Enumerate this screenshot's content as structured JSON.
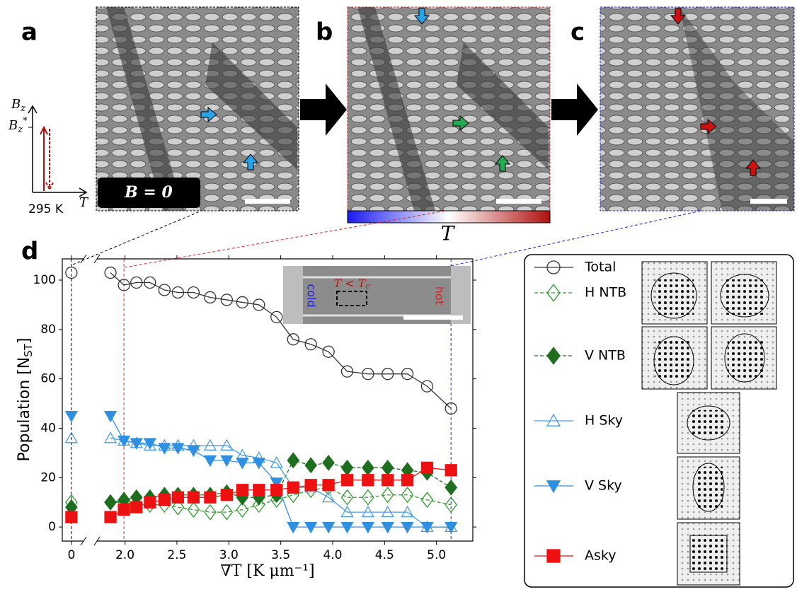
{
  "panel_labels": [
    "a",
    "b",
    "c",
    "d"
  ],
  "field_diagram": {
    "y_axis": "B",
    "y_axis_sub": "z",
    "y_mark": "B",
    "y_mark_sub": "z",
    "y_mark_sup": "*",
    "x_axis": "T",
    "x_mark": "295 K"
  },
  "field_badge": "B = 0",
  "colorbar_label": "T",
  "inset": {
    "left": "cold",
    "right": "hot",
    "box_label": "T < T",
    "box_label_sub": "c"
  },
  "chart_data": {
    "type": "line",
    "xlabel": "∇T [K μm⁻¹]",
    "ylabel": "Population  [N",
    "ylabel_sub": "ST",
    "ylabel_end": "]",
    "x": [
      0,
      1.86,
      1.99,
      2.11,
      2.24,
      2.38,
      2.51,
      2.66,
      2.82,
      2.98,
      3.13,
      3.29,
      3.46,
      3.62,
      3.79,
      3.96,
      4.14,
      4.34,
      4.53,
      4.72,
      4.91,
      5.14
    ],
    "xlim_left": [
      -0.09,
      0.12
    ],
    "xlim": [
      1.73,
      5.35
    ],
    "xticks": [
      0,
      {
        "value": 2,
        "label": "2.0"
      },
      {
        "value": 2.5,
        "label": "2.5"
      },
      {
        "value": 3,
        "label": "3.0"
      },
      {
        "value": 3.5,
        "label": "3.5"
      },
      {
        "value": 4,
        "label": "4.0"
      },
      {
        "value": 4.5,
        "label": "4.5"
      },
      {
        "value": 5,
        "label": "5.0"
      }
    ],
    "ylim": [
      -5.7,
      108.6
    ],
    "yticks": [
      0,
      20,
      40,
      60,
      80,
      100
    ],
    "series": [
      {
        "name": "Total",
        "color": "#333333",
        "marker": "circle",
        "filled": false,
        "dashed": false,
        "values": [
          103,
          103,
          98,
          99,
          99,
          96,
          95,
          95,
          93,
          92,
          91,
          90,
          85,
          76,
          74,
          71,
          63,
          62,
          62,
          62,
          57,
          48
        ]
      },
      {
        "name": "H NTB",
        "color": "#2e9a2e",
        "marker": "diamond",
        "filled": false,
        "dashed": true,
        "values": [
          10,
          10,
          10,
          9,
          9,
          9,
          8,
          7,
          6,
          6,
          7,
          9,
          11,
          13,
          15,
          16,
          12,
          12,
          13,
          13,
          11,
          9
        ]
      },
      {
        "name": "V NTB",
        "color": "#1f6e1f",
        "marker": "diamond",
        "filled": true,
        "dashed": true,
        "values": [
          8,
          10,
          11,
          12,
          12,
          13,
          13,
          13,
          13,
          14,
          12,
          12,
          13,
          27,
          25,
          26,
          24,
          24,
          24,
          23,
          22,
          16
        ]
      },
      {
        "name": "H Sky",
        "color": "#4a9be0",
        "marker": "triangle-up",
        "filled": false,
        "dashed": false,
        "values": [
          36,
          36,
          35,
          34,
          33,
          33,
          33,
          33,
          33,
          33,
          29,
          28,
          26,
          16,
          16,
          12,
          6,
          6,
          6,
          6,
          0,
          0
        ]
      },
      {
        "name": "V Sky",
        "color": "#2f8fe0",
        "marker": "triangle-down",
        "filled": true,
        "dashed": false,
        "values": [
          45,
          45,
          35,
          34,
          34,
          32,
          32,
          31,
          27,
          27,
          26,
          26,
          18,
          0,
          0,
          0,
          0,
          0,
          0,
          0,
          0,
          0
        ]
      },
      {
        "name": "Asky",
        "color": "#ee1111",
        "marker": "square",
        "filled": true,
        "dashed": false,
        "values": [
          4,
          4,
          7,
          8,
          10,
          11,
          12,
          12,
          12,
          13,
          15,
          15,
          15,
          16,
          17,
          17,
          19,
          19,
          19,
          19,
          24,
          23
        ]
      }
    ]
  }
}
